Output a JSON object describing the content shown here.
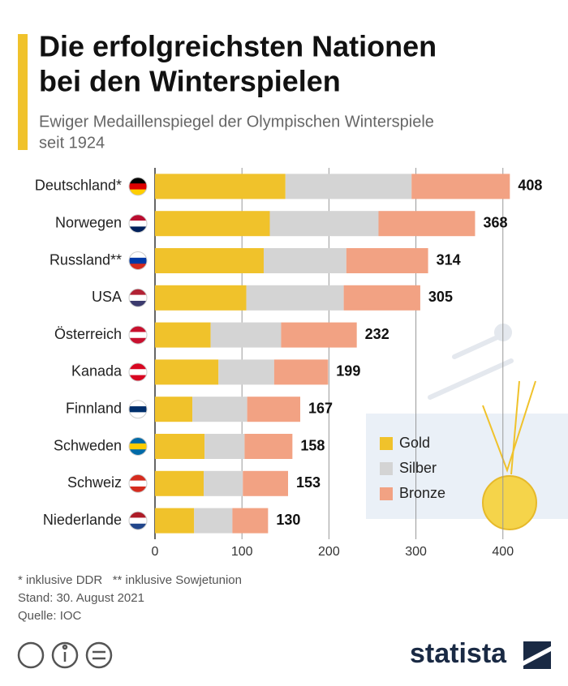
{
  "chart_data": {
    "type": "stacked-barh",
    "title": [
      "Die erfolgreichsten Nationen",
      "bei den Winterspielen"
    ],
    "subtitle": [
      "Ewiger Medaillenspiegel der Olympischen Winterspiele",
      "seit 1924"
    ],
    "categories": [
      "Deutschland*",
      "Norwegen",
      "Russland**",
      "USA",
      "Österreich",
      "Kanada",
      "Finnland",
      "Schweden",
      "Schweiz",
      "Niederlande"
    ],
    "series": [
      {
        "name": "Gold",
        "color": "#f0c22b",
        "values": [
          150,
          132,
          125,
          105,
          64,
          73,
          43,
          57,
          56,
          45
        ]
      },
      {
        "name": "Silber",
        "color": "#d4d4d4",
        "values": [
          145,
          125,
          95,
          112,
          81,
          64,
          63,
          46,
          45,
          44
        ]
      },
      {
        "name": "Bronze",
        "color": "#f2a283",
        "values": [
          113,
          111,
          94,
          88,
          87,
          62,
          61,
          55,
          52,
          41
        ]
      }
    ],
    "totals": [
      408,
      368,
      314,
      305,
      232,
      199,
      167,
      158,
      153,
      130
    ],
    "xlim": [
      0,
      445
    ],
    "xticks": [
      0,
      100,
      200,
      300,
      400
    ],
    "grid": true,
    "footnotes": [
      "* inklusive DDR   ** inklusive Sowjetunion",
      "Stand: 30. August 2021",
      "Quelle: IOC"
    ],
    "brand": "statista"
  }
}
